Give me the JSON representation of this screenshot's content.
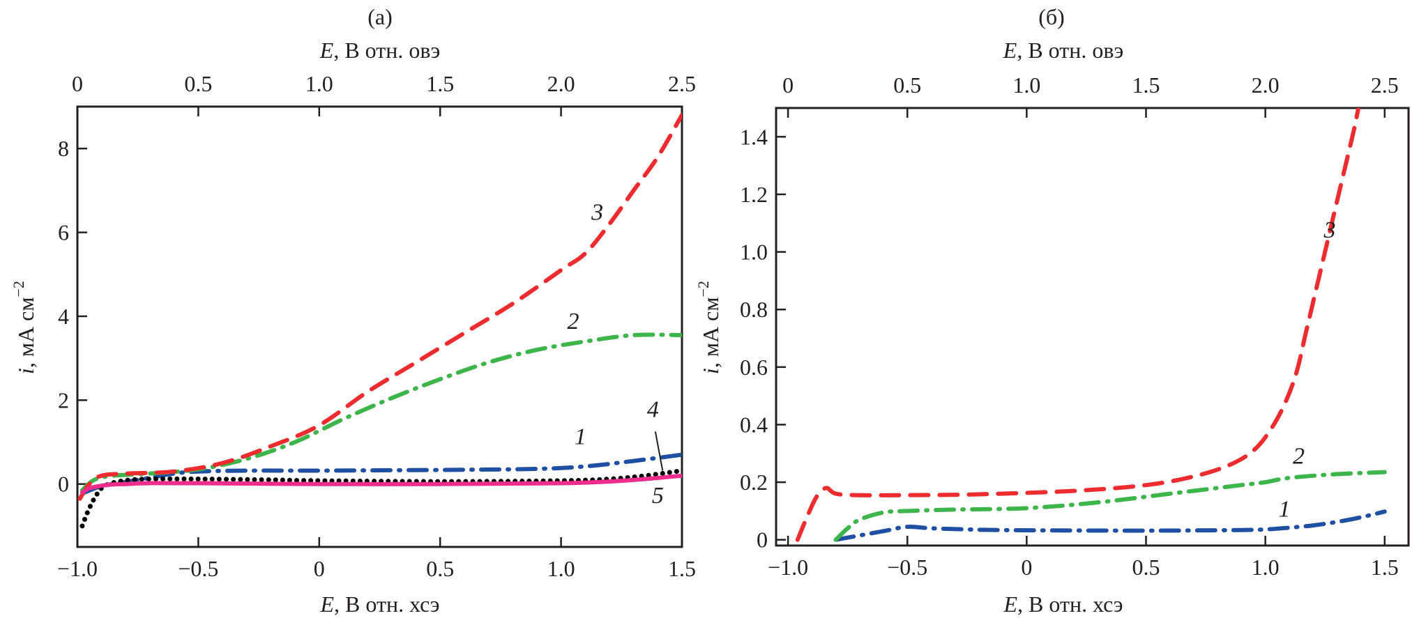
{
  "chart_data": [
    {
      "id": "a",
      "type": "line",
      "title": "(а)",
      "xlabel": "E, В отн. хсэ",
      "xlabel_italic": "E",
      "xlabel_rest": ", В отн. хсэ",
      "x2label_italic": "E",
      "x2label_rest": ", В отн. овэ",
      "ylabel_italic": "i",
      "ylabel_rest": ", мА см",
      "ylabel_sup": "−2",
      "xlim": [
        -1.0,
        1.5
      ],
      "ylim": [
        -1.5,
        9.0
      ],
      "x_ticks": [
        -1.0,
        -0.5,
        0,
        0.5,
        1.0,
        1.5
      ],
      "x_tick_labels": [
        "−1.0",
        "−0.5",
        "0",
        "0.5",
        "1.0",
        "1.5"
      ],
      "x2_offset": 1.0,
      "x2_ticks": [
        0,
        0.5,
        1.0,
        1.5,
        2.0,
        2.5
      ],
      "x2_tick_labels": [
        "0",
        "0.5",
        "1.0",
        "1.5",
        "2.0",
        "2.5"
      ],
      "y_ticks": [
        0,
        2,
        4,
        6,
        8
      ],
      "y_tick_labels": [
        "0",
        "2",
        "4",
        "6",
        "8"
      ],
      "grid": false,
      "series": [
        {
          "name": "1",
          "color": "#1f4fa3",
          "style": "dashdot",
          "x": [
            -0.97,
            -0.9,
            -0.8,
            -0.7,
            -0.6,
            -0.5,
            -0.3,
            0,
            0.3,
            0.6,
            0.9,
            1.1,
            1.3,
            1.5
          ],
          "y": [
            -0.2,
            -0.05,
            0.05,
            0.15,
            0.25,
            0.3,
            0.32,
            0.32,
            0.33,
            0.34,
            0.36,
            0.42,
            0.55,
            0.7
          ]
        },
        {
          "name": "2",
          "color": "#3db54a",
          "style": "dashdot",
          "x": [
            -0.98,
            -0.93,
            -0.85,
            -0.7,
            -0.5,
            -0.3,
            -0.1,
            0.1,
            0.3,
            0.5,
            0.7,
            0.9,
            1.1,
            1.3,
            1.5
          ],
          "y": [
            -0.15,
            0.1,
            0.2,
            0.25,
            0.35,
            0.6,
            1.0,
            1.55,
            2.05,
            2.5,
            2.9,
            3.2,
            3.4,
            3.55,
            3.55
          ]
        },
        {
          "name": "3",
          "color": "#ee2b2e",
          "style": "dashed",
          "x": [
            -0.99,
            -0.95,
            -0.9,
            -0.8,
            -0.6,
            -0.4,
            -0.2,
            0,
            0.2,
            0.4,
            0.6,
            0.8,
            1.0,
            1.1,
            1.2,
            1.3,
            1.4,
            1.5
          ],
          "y": [
            -0.35,
            0.0,
            0.2,
            0.25,
            0.3,
            0.5,
            0.9,
            1.4,
            2.2,
            2.9,
            3.6,
            4.3,
            5.1,
            5.5,
            6.2,
            7.0,
            7.8,
            8.8
          ]
        },
        {
          "name": "4",
          "color": "#000000",
          "style": "dotted",
          "x": [
            -0.98,
            -0.96,
            -0.94,
            -0.92,
            -0.9,
            -0.87,
            -0.83,
            -0.78,
            -0.7,
            -0.5,
            -0.2,
            0,
            0.5,
            1.0,
            1.2,
            1.35,
            1.5
          ],
          "y": [
            -1.0,
            -0.7,
            -0.45,
            -0.25,
            -0.1,
            0.0,
            0.06,
            0.1,
            0.12,
            0.12,
            0.1,
            0.08,
            0.06,
            0.08,
            0.12,
            0.2,
            0.32
          ]
        },
        {
          "name": "5",
          "color": "#ec2d8c",
          "style": "solid",
          "x": [
            -0.98,
            -0.95,
            -0.9,
            -0.85,
            -0.8,
            -0.7,
            -0.5,
            0,
            0.5,
            1.0,
            1.2,
            1.35,
            1.5
          ],
          "y": [
            -0.2,
            -0.1,
            -0.04,
            -0.01,
            0.0,
            0.02,
            0.02,
            0.0,
            0.0,
            0.02,
            0.06,
            0.12,
            0.2
          ]
        }
      ],
      "annotations": [
        {
          "text": "3",
          "x": 1.15,
          "y": 6.3
        },
        {
          "text": "2",
          "x": 1.05,
          "y": 3.7
        },
        {
          "text": "1",
          "x": 1.08,
          "y": 0.95
        },
        {
          "text": "4",
          "x": 1.38,
          "y": 1.6
        },
        {
          "text": "5",
          "x": 1.4,
          "y": -0.45
        }
      ]
    },
    {
      "id": "b",
      "type": "line",
      "title": "(б)",
      "xlabel": "E, В отн. хсэ",
      "xlabel_italic": "E",
      "xlabel_rest": ", В отн. хсэ",
      "x2label_italic": "E",
      "x2label_rest": ", В отн. овэ",
      "ylabel_italic": "i",
      "ylabel_rest": ", мА см",
      "ylabel_sup": "−2",
      "xlim": [
        -1.05,
        1.6
      ],
      "ylim": [
        -0.02,
        1.5
      ],
      "x_ticks": [
        -1.0,
        -0.5,
        0,
        0.5,
        1.0,
        1.5
      ],
      "x_tick_labels": [
        "−1.0",
        "−0.5",
        "0",
        "0.5",
        "1.0",
        "1.5"
      ],
      "x2_offset": 1.0,
      "x2_ticks": [
        0,
        0.5,
        1.0,
        1.5,
        2.0,
        2.5
      ],
      "x2_tick_labels": [
        "0",
        "0.5",
        "1.0",
        "1.5",
        "2.0",
        "2.5"
      ],
      "y_ticks": [
        0,
        0.2,
        0.4,
        0.6,
        0.8,
        1.0,
        1.2,
        1.4
      ],
      "y_tick_labels": [
        "0",
        "0.2",
        "0.4",
        "0.6",
        "0.8",
        "1.0",
        "1.2",
        "1.4"
      ],
      "grid": false,
      "series": [
        {
          "name": "1",
          "color": "#1f4fa3",
          "style": "dashdot",
          "x": [
            -0.8,
            -0.7,
            -0.6,
            -0.5,
            -0.4,
            -0.2,
            0,
            0.3,
            0.6,
            0.9,
            1.0,
            1.1,
            1.2,
            1.3,
            1.4,
            1.5
          ],
          "y": [
            0.0,
            0.015,
            0.03,
            0.045,
            0.04,
            0.035,
            0.033,
            0.032,
            0.032,
            0.034,
            0.036,
            0.042,
            0.05,
            0.062,
            0.078,
            0.098
          ]
        },
        {
          "name": "2",
          "color": "#3db54a",
          "style": "dashdot",
          "x": [
            -0.8,
            -0.75,
            -0.7,
            -0.6,
            -0.5,
            -0.3,
            0,
            0.3,
            0.6,
            0.9,
            1.0,
            1.1,
            1.3,
            1.5
          ],
          "y": [
            0.0,
            0.04,
            0.07,
            0.095,
            0.1,
            0.105,
            0.11,
            0.13,
            0.16,
            0.19,
            0.2,
            0.215,
            0.228,
            0.235
          ]
        },
        {
          "name": "3",
          "color": "#ee2b2e",
          "style": "dashed",
          "x": [
            -0.96,
            -0.92,
            -0.88,
            -0.84,
            -0.8,
            -0.7,
            -0.5,
            -0.2,
            0.2,
            0.5,
            0.7,
            0.85,
            0.95,
            1.02,
            1.08,
            1.13,
            1.17,
            1.21,
            1.25,
            1.29,
            1.33,
            1.37,
            1.39
          ],
          "y": [
            0.0,
            0.08,
            0.15,
            0.18,
            0.16,
            0.155,
            0.155,
            0.158,
            0.17,
            0.19,
            0.22,
            0.26,
            0.31,
            0.38,
            0.47,
            0.58,
            0.72,
            0.86,
            1.0,
            1.14,
            1.28,
            1.42,
            1.5
          ]
        }
      ],
      "annotations": [
        {
          "text": "3",
          "x": 1.27,
          "y": 1.05
        },
        {
          "text": "2",
          "x": 1.14,
          "y": 0.265
        },
        {
          "text": "1",
          "x": 1.08,
          "y": 0.08
        }
      ]
    }
  ]
}
